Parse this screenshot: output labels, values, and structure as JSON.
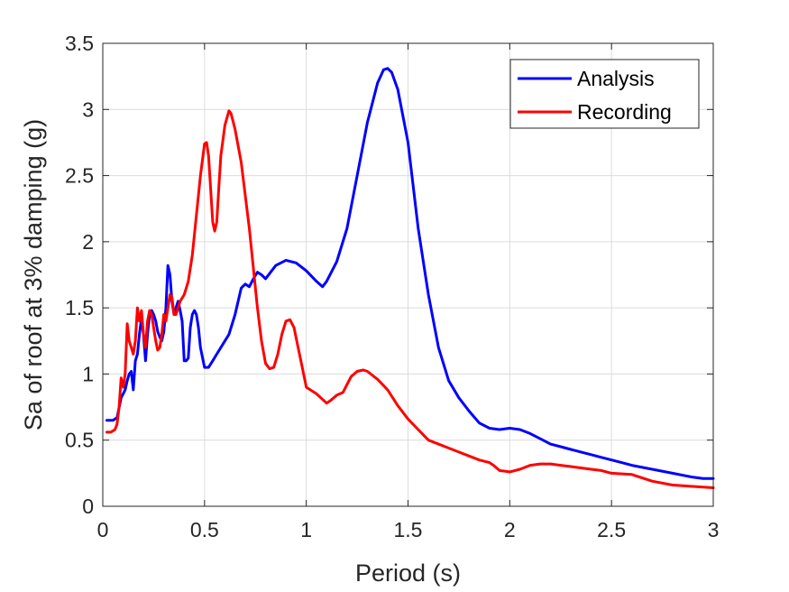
{
  "chart_data": {
    "type": "line",
    "title": "",
    "xlabel": "Period (s)",
    "ylabel": "Sa of roof at 3% damping (g)",
    "xlim": [
      0,
      3
    ],
    "ylim": [
      0,
      3.5
    ],
    "xticks": [
      0,
      0.5,
      1,
      1.5,
      2,
      2.5,
      3
    ],
    "yticks": [
      0,
      0.5,
      1,
      1.5,
      2,
      2.5,
      3,
      3.5
    ],
    "xtick_labels": [
      "0",
      "0.5",
      "1",
      "1.5",
      "2",
      "2.5",
      "3"
    ],
    "ytick_labels": [
      "0",
      "0.5",
      "1",
      "1.5",
      "2",
      "2.5",
      "3",
      "3.5"
    ],
    "grid": true,
    "legend": "top-right",
    "series": [
      {
        "name": "Analysis",
        "color": "#0000ff",
        "x": [
          0.02,
          0.05,
          0.07,
          0.09,
          0.1,
          0.11,
          0.12,
          0.13,
          0.14,
          0.15,
          0.16,
          0.17,
          0.18,
          0.19,
          0.2,
          0.21,
          0.22,
          0.23,
          0.24,
          0.25,
          0.26,
          0.27,
          0.28,
          0.29,
          0.3,
          0.31,
          0.32,
          0.33,
          0.34,
          0.35,
          0.36,
          0.37,
          0.38,
          0.39,
          0.4,
          0.41,
          0.42,
          0.43,
          0.44,
          0.45,
          0.46,
          0.47,
          0.48,
          0.5,
          0.52,
          0.54,
          0.56,
          0.58,
          0.6,
          0.62,
          0.65,
          0.68,
          0.7,
          0.72,
          0.74,
          0.76,
          0.78,
          0.8,
          0.85,
          0.9,
          0.95,
          1.0,
          1.05,
          1.08,
          1.1,
          1.15,
          1.2,
          1.25,
          1.3,
          1.35,
          1.38,
          1.4,
          1.42,
          1.45,
          1.5,
          1.55,
          1.6,
          1.65,
          1.7,
          1.75,
          1.8,
          1.85,
          1.9,
          1.95,
          2.0,
          2.05,
          2.1,
          2.15,
          2.2,
          2.25,
          2.3,
          2.35,
          2.4,
          2.45,
          2.5,
          2.55,
          2.6,
          2.7,
          2.8,
          2.9,
          2.95,
          3.0
        ],
        "y": [
          0.65,
          0.65,
          0.67,
          0.82,
          0.85,
          0.88,
          0.95,
          1.0,
          1.02,
          0.88,
          1.1,
          1.15,
          1.3,
          1.42,
          1.3,
          1.1,
          1.3,
          1.45,
          1.48,
          1.45,
          1.4,
          1.32,
          1.28,
          1.25,
          1.32,
          1.5,
          1.82,
          1.75,
          1.55,
          1.45,
          1.5,
          1.55,
          1.48,
          1.4,
          1.1,
          1.1,
          1.12,
          1.35,
          1.45,
          1.48,
          1.45,
          1.35,
          1.2,
          1.05,
          1.05,
          1.1,
          1.15,
          1.2,
          1.25,
          1.3,
          1.45,
          1.65,
          1.68,
          1.66,
          1.72,
          1.77,
          1.75,
          1.72,
          1.82,
          1.86,
          1.84,
          1.78,
          1.7,
          1.66,
          1.7,
          1.85,
          2.1,
          2.5,
          2.9,
          3.2,
          3.3,
          3.31,
          3.28,
          3.15,
          2.75,
          2.1,
          1.6,
          1.2,
          0.95,
          0.82,
          0.72,
          0.63,
          0.59,
          0.58,
          0.59,
          0.58,
          0.55,
          0.51,
          0.47,
          0.45,
          0.43,
          0.41,
          0.39,
          0.37,
          0.35,
          0.33,
          0.31,
          0.28,
          0.25,
          0.22,
          0.21,
          0.21
        ]
      },
      {
        "name": "Recording",
        "color": "#ff0000",
        "x": [
          0.02,
          0.04,
          0.06,
          0.07,
          0.08,
          0.09,
          0.1,
          0.11,
          0.12,
          0.13,
          0.14,
          0.15,
          0.16,
          0.17,
          0.18,
          0.19,
          0.2,
          0.21,
          0.22,
          0.23,
          0.24,
          0.25,
          0.26,
          0.27,
          0.28,
          0.29,
          0.3,
          0.31,
          0.32,
          0.33,
          0.34,
          0.35,
          0.36,
          0.37,
          0.38,
          0.4,
          0.42,
          0.44,
          0.46,
          0.48,
          0.5,
          0.51,
          0.52,
          0.53,
          0.54,
          0.55,
          0.56,
          0.57,
          0.58,
          0.6,
          0.62,
          0.63,
          0.65,
          0.68,
          0.7,
          0.72,
          0.74,
          0.76,
          0.78,
          0.8,
          0.82,
          0.84,
          0.86,
          0.88,
          0.9,
          0.92,
          0.94,
          0.96,
          0.98,
          1.0,
          1.05,
          1.1,
          1.12,
          1.15,
          1.18,
          1.2,
          1.22,
          1.25,
          1.28,
          1.3,
          1.35,
          1.4,
          1.45,
          1.5,
          1.55,
          1.6,
          1.7,
          1.8,
          1.85,
          1.9,
          1.92,
          1.95,
          2.0,
          2.05,
          2.1,
          2.15,
          2.2,
          2.25,
          2.3,
          2.35,
          2.4,
          2.45,
          2.5,
          2.6,
          2.7,
          2.8,
          2.9,
          3.0
        ],
        "y": [
          0.56,
          0.56,
          0.58,
          0.62,
          0.75,
          0.97,
          0.9,
          1.0,
          1.38,
          1.25,
          1.2,
          1.15,
          1.25,
          1.5,
          1.4,
          1.48,
          1.3,
          1.2,
          1.4,
          1.48,
          1.45,
          1.35,
          1.25,
          1.18,
          1.2,
          1.3,
          1.45,
          1.4,
          1.5,
          1.6,
          1.58,
          1.45,
          1.45,
          1.5,
          1.55,
          1.6,
          1.7,
          1.9,
          2.2,
          2.5,
          2.74,
          2.75,
          2.65,
          2.4,
          2.15,
          2.08,
          2.15,
          2.4,
          2.65,
          2.88,
          2.99,
          2.97,
          2.85,
          2.6,
          2.35,
          2.1,
          1.8,
          1.5,
          1.25,
          1.08,
          1.04,
          1.05,
          1.15,
          1.3,
          1.4,
          1.41,
          1.35,
          1.2,
          1.05,
          0.9,
          0.85,
          0.78,
          0.8,
          0.84,
          0.86,
          0.92,
          0.98,
          1.02,
          1.03,
          1.02,
          0.96,
          0.88,
          0.76,
          0.66,
          0.58,
          0.5,
          0.44,
          0.38,
          0.35,
          0.33,
          0.31,
          0.27,
          0.26,
          0.28,
          0.31,
          0.32,
          0.32,
          0.31,
          0.3,
          0.29,
          0.28,
          0.27,
          0.25,
          0.24,
          0.19,
          0.16,
          0.15,
          0.14
        ]
      }
    ]
  }
}
